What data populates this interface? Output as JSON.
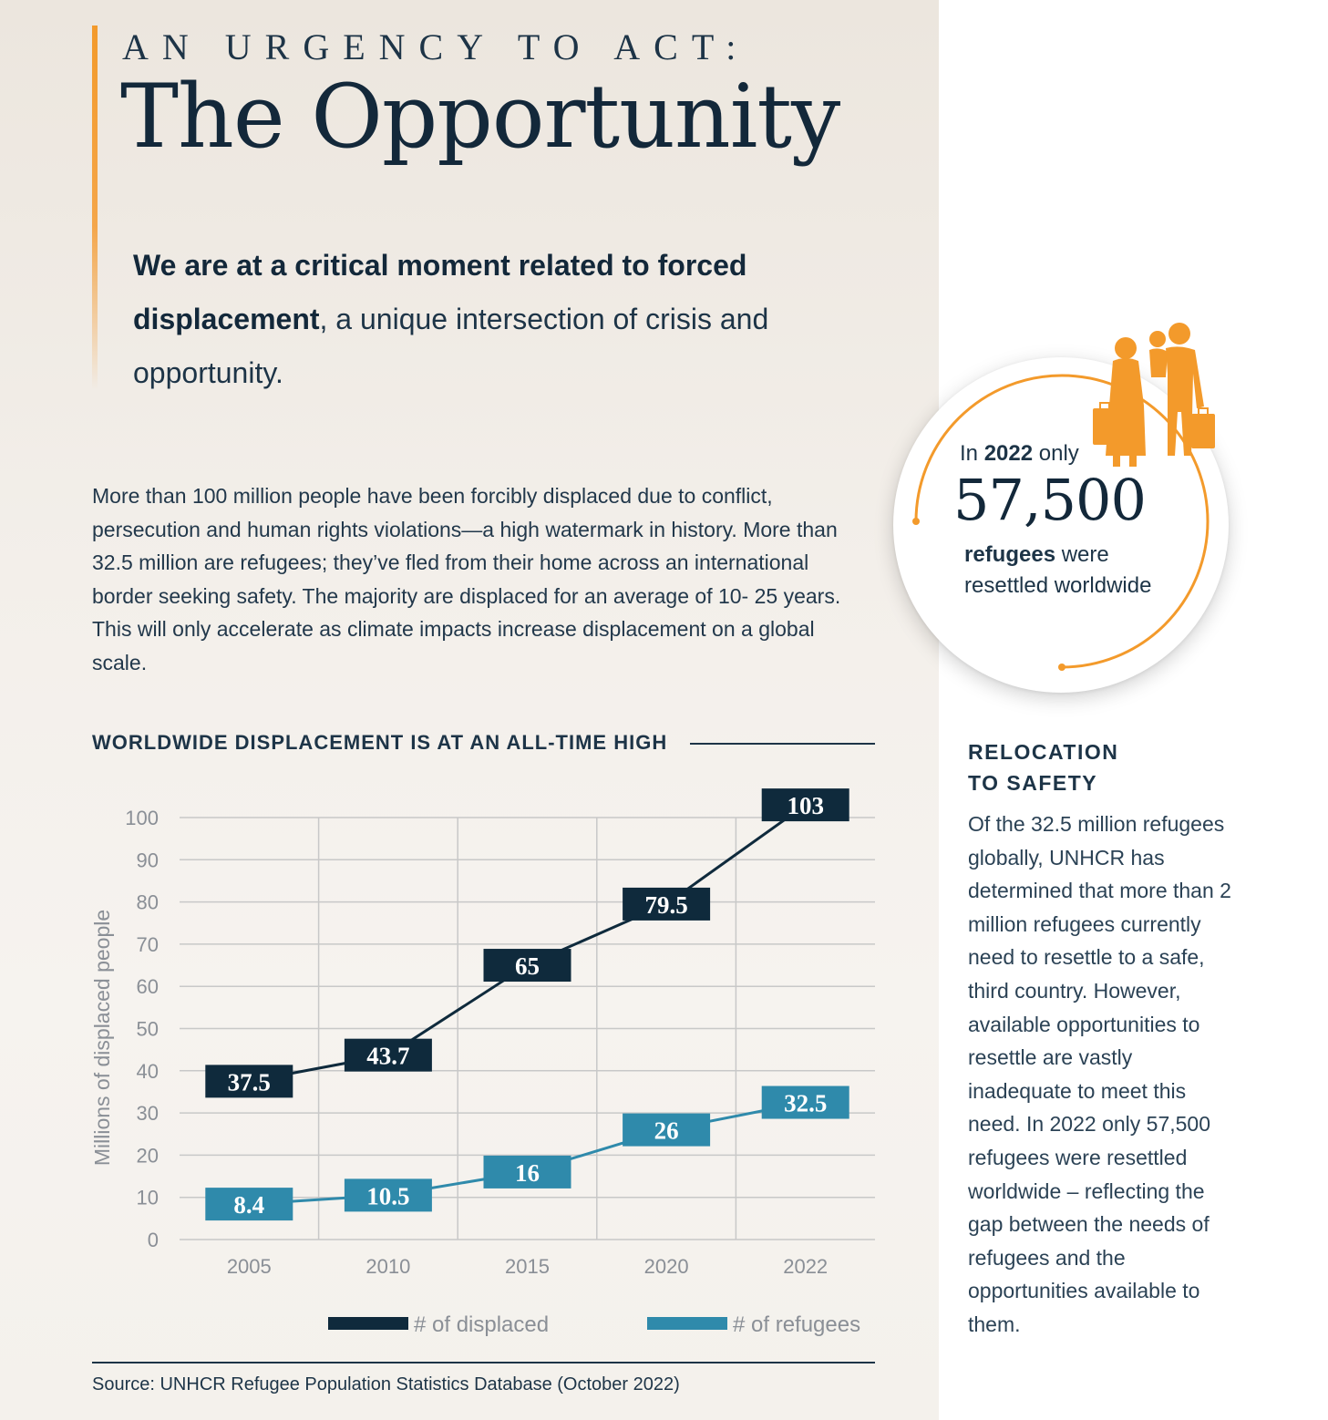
{
  "header": {
    "kicker": "AN URGENCY TO ACT:",
    "title": "The Opportunity"
  },
  "lead": {
    "bold": "We are at a critical moment related to forced displacement",
    "rest": ", a unique intersection of crisis and opportunity."
  },
  "body": "More than 100 million people have been forcibly displaced due to conflict, persecution and human rights violations—a high watermark in history. More than 32.5 million are refugees; they’ve fled from their home across an international border seeking safety. The majority are displaced for an average of 10- 25 years. This will only accelerate as climate impacts increase displacement on a global scale.",
  "chart_title": "WORLDWIDE DISPLACEMENT IS AT AN ALL-TIME HIGH",
  "source": "Source: UNHCR Refugee Population Statistics Database (October 2022)",
  "callout": {
    "prefix": "In ",
    "year": "2022",
    "suffix": " only",
    "number": "57,500",
    "bold": "refugees",
    "rest": " were",
    "line3": "resettled worldwide"
  },
  "sidebar": {
    "heading_line1": "RELOCATION",
    "heading_line2": "TO SAFETY",
    "text": "Of the 32.5 million refugees globally, UNHCR has determined that more than 2 million refugees currently need to resettle to a safe, third country. However, available opportunities to resettle are vastly inadequate to meet this need. In 2022 only 57,500 refugees were resettled worldwide – reflecting the gap between the needs of refugees and the opportunities available to them."
  },
  "colors": {
    "navy": "#0f2a3c",
    "teal": "#2f8aab",
    "orange": "#f39a2b",
    "grid": "#c8c8c8"
  },
  "chart_data": {
    "type": "line",
    "categories": [
      "2005",
      "2010",
      "2015",
      "2020",
      "2022"
    ],
    "ylabel": "Millions of displaced people",
    "xlabel": "",
    "ylim": [
      0,
      100
    ],
    "yticks": [
      "0",
      "10",
      "20",
      "30",
      "40",
      "50",
      "60",
      "70",
      "80",
      "90",
      "100"
    ],
    "grid": true,
    "legend_position": "bottom",
    "series": [
      {
        "name": "# of displaced",
        "values": [
          37.5,
          43.7,
          65,
          79.5,
          103
        ],
        "labels": [
          "37.5",
          "43.7",
          "65",
          "79.5",
          "103"
        ],
        "color": "#0f2a3c"
      },
      {
        "name": "# of refugees",
        "values": [
          8.4,
          10.5,
          16,
          26,
          32.5
        ],
        "labels": [
          "8.4",
          "10.5",
          "16",
          "26",
          "32.5"
        ],
        "color": "#2f8aab"
      }
    ]
  }
}
